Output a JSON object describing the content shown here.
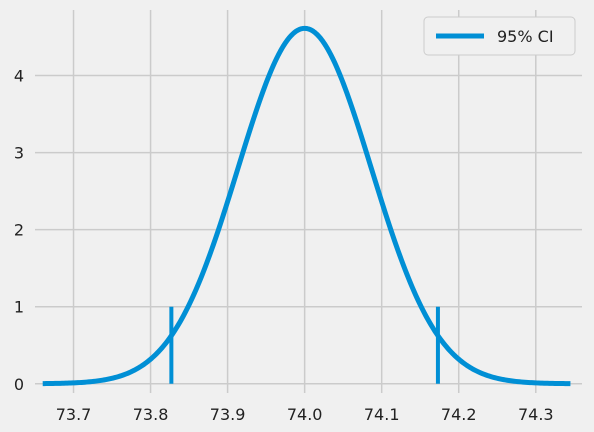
{
  "chart_data": {
    "type": "line",
    "title": "",
    "xlabel": "",
    "ylabel": "",
    "xlim": [
      73.65,
      74.36
    ],
    "ylim": [
      -0.12,
      4.85
    ],
    "x_ticks": [
      73.7,
      73.8,
      73.9,
      74.0,
      74.1,
      74.2,
      74.3
    ],
    "x_tick_labels": [
      "73.7",
      "73.8",
      "73.9",
      "74.0",
      "74.1",
      "74.2",
      "74.3"
    ],
    "y_ticks": [
      0,
      1,
      2,
      3,
      4
    ],
    "y_tick_labels": [
      "0",
      "1",
      "2",
      "3",
      "4"
    ],
    "grid": true,
    "legend": {
      "position": "top-right",
      "entries": [
        "95% CI"
      ]
    },
    "series": [
      {
        "name": "95% CI",
        "color": "#008fd5",
        "distribution": "normal",
        "mean": 74.0,
        "std": 0.0865,
        "x_range": [
          73.66,
          74.345
        ],
        "x": [
          73.66,
          73.7,
          73.75,
          73.8,
          73.827,
          73.85,
          73.9,
          73.95,
          74.0,
          74.05,
          74.1,
          74.15,
          74.173,
          74.2,
          74.25,
          74.3,
          74.345
        ],
        "values": [
          0.01,
          0.04,
          0.14,
          0.4,
          0.63,
          0.92,
          2.3,
          3.88,
          4.61,
          3.88,
          2.3,
          0.92,
          0.63,
          0.4,
          0.14,
          0.04,
          0.01
        ]
      }
    ],
    "ci_lines": {
      "color": "#008fd5",
      "x": [
        73.827,
        74.173
      ],
      "y_range": [
        0,
        1
      ]
    }
  }
}
